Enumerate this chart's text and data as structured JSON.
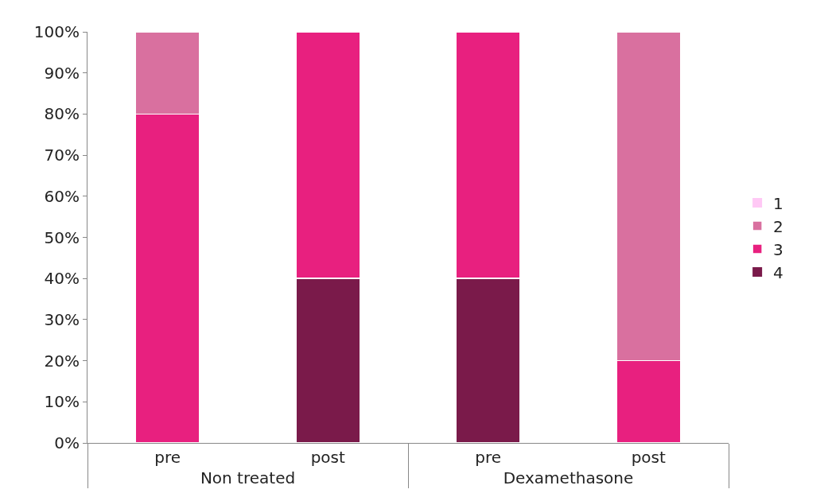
{
  "chart_data": {
    "type": "bar",
    "stacked": true,
    "categories": [
      "pre",
      "post",
      "pre",
      "post"
    ],
    "annotations": [
      "Non treated",
      "Dexamethasone"
    ],
    "series": [
      {
        "name": "4",
        "color": "#7a1a4a",
        "values": [
          0,
          40,
          40,
          0
        ]
      },
      {
        "name": "3",
        "color": "#e8207f",
        "values": [
          80,
          60,
          60,
          20
        ]
      },
      {
        "name": "2",
        "color": "#d9709f",
        "values": [
          20,
          0,
          0,
          80
        ]
      },
      {
        "name": "1",
        "color": "#ffc8f5",
        "values": [
          0,
          0,
          0,
          0
        ]
      }
    ],
    "ylim": [
      0,
      100
    ],
    "yticks": [
      {
        "value": 0,
        "label": "0%"
      },
      {
        "value": 10,
        "label": "10%"
      },
      {
        "value": 20,
        "label": "20%"
      },
      {
        "value": 30,
        "label": "30%"
      },
      {
        "value": 40,
        "label": "40%"
      },
      {
        "value": 50,
        "label": "50%"
      },
      {
        "value": 60,
        "label": "60%"
      },
      {
        "value": 70,
        "label": "70%"
      },
      {
        "value": 80,
        "label": "80%"
      },
      {
        "value": 90,
        "label": "90%"
      },
      {
        "value": 100,
        "label": "100%"
      }
    ],
    "legend": "right"
  }
}
